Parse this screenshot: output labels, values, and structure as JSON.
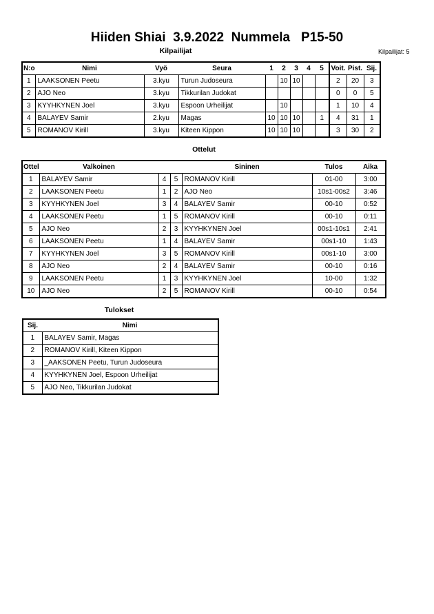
{
  "title": "Hiiden Shiai  3.9.2022  Nummela   P15-50",
  "competitors": {
    "heading": "Kilpailijat",
    "count_label": "Kilpailijat: 5",
    "columns": [
      "N:o",
      "Nimi",
      "Vyö",
      "Seura",
      "1",
      "2",
      "3",
      "4",
      "5",
      "Voit.",
      "Pist.",
      "Sij."
    ],
    "rows": [
      [
        "1",
        "LAAKSONEN Peetu",
        "3.kyu",
        "Turun Judoseura",
        "",
        "10",
        "10",
        "",
        "",
        "2",
        "20",
        "3"
      ],
      [
        "2",
        "AJO Neo",
        "3.kyu",
        "Tikkurilan Judokat",
        "",
        "",
        "",
        "",
        "",
        "0",
        "0",
        "5"
      ],
      [
        "3",
        "KYYHKYNEN Joel",
        "3.kyu",
        "Espoon Urheilijat",
        "",
        "10",
        "",
        "",
        "",
        "1",
        "10",
        "4"
      ],
      [
        "4",
        "BALAYEV Samir",
        "2.kyu",
        "Magas",
        "10",
        "10",
        "10",
        "",
        "1",
        "4",
        "31",
        "1"
      ],
      [
        "5",
        "ROMANOV Kirill",
        "3.kyu",
        "Kiteen Kippon",
        "10",
        "10",
        "10",
        "",
        "",
        "3",
        "30",
        "2"
      ]
    ]
  },
  "matches": {
    "heading": "Ottelut",
    "columns": [
      "Ottelu",
      "Valkoinen",
      "",
      "",
      "Sininen",
      "Tulos",
      "Aika"
    ],
    "rows": [
      [
        "1",
        "BALAYEV Samir",
        "4",
        "5",
        "ROMANOV Kirill",
        "01-00",
        "3:00"
      ],
      [
        "2",
        "LAAKSONEN Peetu",
        "1",
        "2",
        "AJO Neo",
        "10s1-00s2",
        "3:46"
      ],
      [
        "3",
        "KYYHKYNEN Joel",
        "3",
        "4",
        "BALAYEV Samir",
        "00-10",
        "0:52"
      ],
      [
        "4",
        "LAAKSONEN Peetu",
        "1",
        "5",
        "ROMANOV Kirill",
        "00-10",
        "0:11"
      ],
      [
        "5",
        "AJO Neo",
        "2",
        "3",
        "KYYHKYNEN Joel",
        "00s1-10s1",
        "2:41"
      ],
      [
        "6",
        "LAAKSONEN Peetu",
        "1",
        "4",
        "BALAYEV Samir",
        "00s1-10",
        "1:43"
      ],
      [
        "7",
        "KYYHKYNEN Joel",
        "3",
        "5",
        "ROMANOV Kirill",
        "00s1-10",
        "3:00"
      ],
      [
        "8",
        "AJO Neo",
        "2",
        "4",
        "BALAYEV Samir",
        "00-10",
        "0:16"
      ],
      [
        "9",
        "LAAKSONEN Peetu",
        "1",
        "3",
        "KYYHKYNEN Joel",
        "10-00",
        "1:32"
      ],
      [
        "10",
        "AJO Neo",
        "2",
        "5",
        "ROMANOV Kirill",
        "00-10",
        "0:54"
      ]
    ]
  },
  "results": {
    "heading": "Tulokset",
    "columns": [
      "Sij.",
      "Nimi"
    ],
    "rows": [
      [
        "1",
        "BALAYEV Samir, Magas"
      ],
      [
        "2",
        "ROMANOV Kirill, Kiteen Kippon"
      ],
      [
        "3",
        "_AAKSONEN Peetu, Turun Judoseura"
      ],
      [
        "4",
        "KYYHKYNEN Joel, Espoon Urheilijat"
      ],
      [
        "5",
        "AJO Neo, Tikkurilan Judokat"
      ]
    ]
  }
}
